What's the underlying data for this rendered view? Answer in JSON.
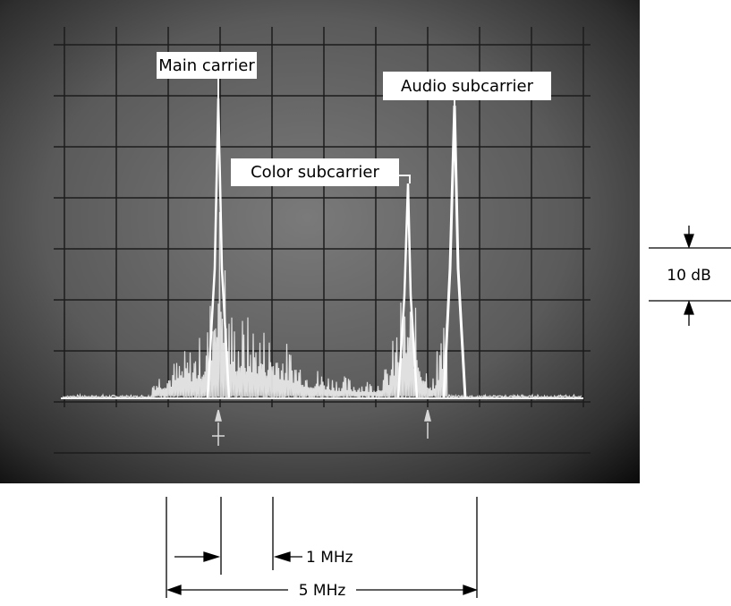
{
  "labels": {
    "main_carrier": "Main carrier",
    "color_subcarrier": "Color subcarrier",
    "audio_subcarrier": "Audio subcarrier"
  },
  "scale": {
    "vertical": "10 dB",
    "small_interval": "1 MHz",
    "span": "5 MHz"
  }
}
